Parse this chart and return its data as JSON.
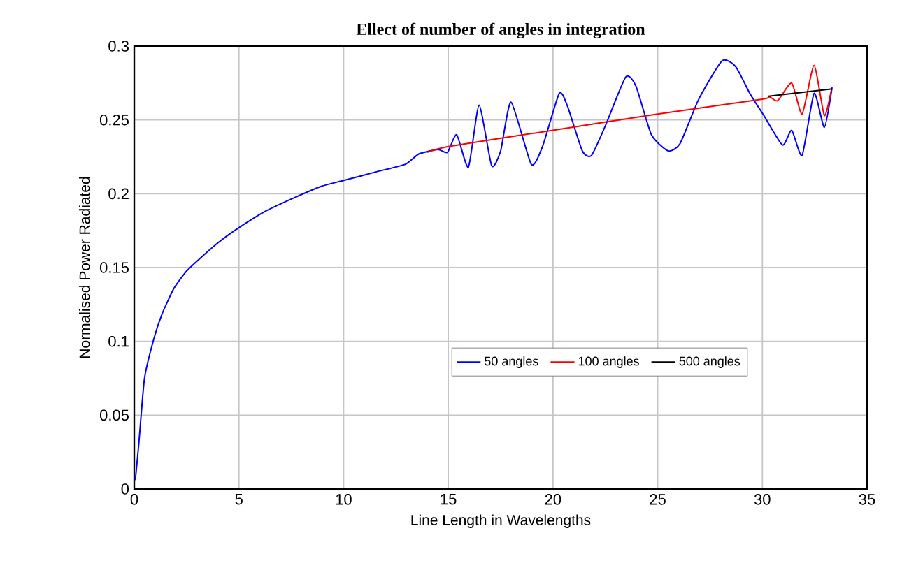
{
  "chart_data": {
    "type": "line",
    "title": "Ellect of number of angles in integration",
    "xlabel": "Line Length in Wavelengths",
    "ylabel": "Normalised Power Radiated",
    "xlim": [
      0,
      35
    ],
    "ylim": [
      0,
      0.3
    ],
    "xticks": [
      0,
      5,
      10,
      15,
      20,
      25,
      30,
      35
    ],
    "yticks": [
      0,
      0.05,
      0.1,
      0.15,
      0.2,
      0.25,
      0.3
    ],
    "grid": true,
    "legend": "bottom right",
    "marker": "none",
    "line_style": "solid",
    "series": [
      {
        "name": "50 angles",
        "color": "#0000ff",
        "x": [
          0.05,
          0.22,
          0.49,
          0.94,
          1.34,
          1.9,
          2.46,
          3.13,
          4.02,
          5.0,
          6.25,
          7.6,
          8.93,
          10,
          11.6,
          12.95,
          13.6,
          14.5,
          14.96,
          15.4,
          15.96,
          16.47,
          17.07,
          17.5,
          18.0,
          18.96,
          19.5,
          20.3,
          20.7,
          21.4,
          21.84,
          22.5,
          23.47,
          23.96,
          24.7,
          25.5,
          26.07,
          26.96,
          28.07,
          28.73,
          29.4,
          30.07,
          30.96,
          31.4,
          31.9,
          32.47,
          32.96,
          33.33
        ],
        "values": [
          0.006,
          0.031,
          0.075,
          0.102,
          0.119,
          0.136,
          0.147,
          0.156,
          0.167,
          0.177,
          0.188,
          0.197,
          0.205,
          0.209,
          0.215,
          0.22,
          0.227,
          0.23,
          0.228,
          0.24,
          0.218,
          0.26,
          0.219,
          0.229,
          0.262,
          0.22,
          0.232,
          0.268,
          0.259,
          0.229,
          0.226,
          0.246,
          0.279,
          0.273,
          0.24,
          0.229,
          0.234,
          0.264,
          0.29,
          0.286,
          0.268,
          0.253,
          0.233,
          0.243,
          0.226,
          0.268,
          0.245,
          0.272
        ]
      },
      {
        "name": "100 angles",
        "color": "#ff0000",
        "x": [
          14.0,
          15.0,
          20.0,
          25.0,
          30.0,
          30.3,
          30.73,
          31.4,
          31.9,
          32.47,
          32.96,
          33.29
        ],
        "values": [
          0.228,
          0.232,
          0.243,
          0.254,
          0.264,
          0.266,
          0.263,
          0.275,
          0.254,
          0.287,
          0.253,
          0.27
        ]
      },
      {
        "name": "500 angles",
        "color": "#000000",
        "x": [
          30.3,
          33.33
        ],
        "values": [
          0.266,
          0.271
        ]
      }
    ]
  }
}
